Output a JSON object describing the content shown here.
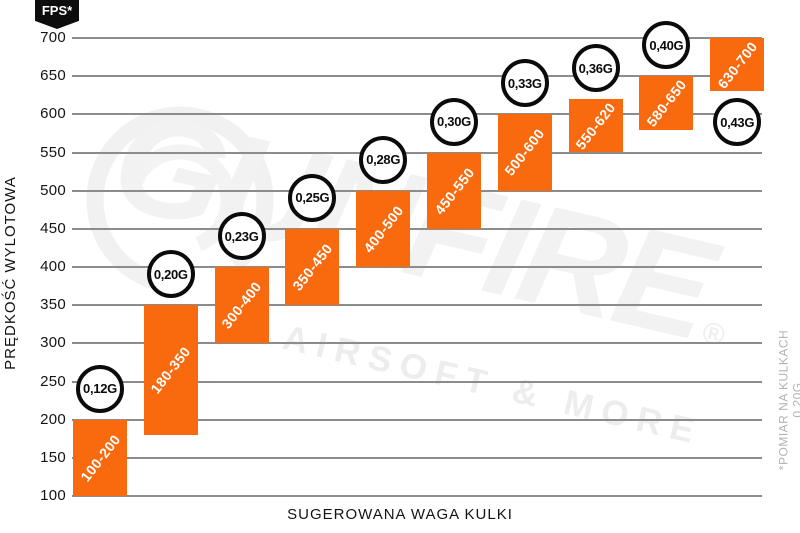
{
  "colors": {
    "bar": "#F9690E",
    "gridline": "#8C8C8C",
    "badge_bg": "#0D0D0D",
    "text": "#141414",
    "footnote_text": "#B3B3B3",
    "watermark": "#F2F2F2"
  },
  "chart_data": {
    "type": "bar",
    "title": "",
    "unit_label": "FPS*",
    "ylabel": "PRĘDKOŚĆ WYLOTOWA",
    "xlabel": "SUGEROWANA WAGA KULKI",
    "footnote": "*POMIAR NA KULKACH 0.20G",
    "ylim": [
      100,
      700
    ],
    "yticks": [
      100,
      150,
      200,
      250,
      300,
      350,
      400,
      450,
      500,
      550,
      600,
      650,
      700
    ],
    "grid": true,
    "legend_position": "none",
    "bars": [
      {
        "weight_label": "0,12G",
        "fps_label": "100-200",
        "fps_min": 100,
        "fps_max": 200,
        "weight_badge_position": "above"
      },
      {
        "weight_label": "0,20G",
        "fps_label": "180-350",
        "fps_min": 180,
        "fps_max": 350,
        "weight_badge_position": "above"
      },
      {
        "weight_label": "0,23G",
        "fps_label": "300-400",
        "fps_min": 300,
        "fps_max": 400,
        "weight_badge_position": "above"
      },
      {
        "weight_label": "0,25G",
        "fps_label": "350-450",
        "fps_min": 350,
        "fps_max": 450,
        "weight_badge_position": "above"
      },
      {
        "weight_label": "0,28G",
        "fps_label": "400-500",
        "fps_min": 400,
        "fps_max": 500,
        "weight_badge_position": "above"
      },
      {
        "weight_label": "0,30G",
        "fps_label": "450-550",
        "fps_min": 450,
        "fps_max": 550,
        "weight_badge_position": "above"
      },
      {
        "weight_label": "0,33G",
        "fps_label": "500-600",
        "fps_min": 500,
        "fps_max": 600,
        "weight_badge_position": "above"
      },
      {
        "weight_label": "0,36G",
        "fps_label": "550-620",
        "fps_min": 550,
        "fps_max": 620,
        "weight_badge_position": "above"
      },
      {
        "weight_label": "0,40G",
        "fps_label": "580-650",
        "fps_min": 580,
        "fps_max": 650,
        "weight_badge_position": "above"
      },
      {
        "weight_label": "0,43G",
        "fps_label": "630-700",
        "fps_min": 630,
        "fps_max": 700,
        "weight_badge_position": "below"
      }
    ]
  },
  "watermark": {
    "brand": "GUNFIRE",
    "registered": "®",
    "tagline": "AIRSOFT & MORE"
  }
}
